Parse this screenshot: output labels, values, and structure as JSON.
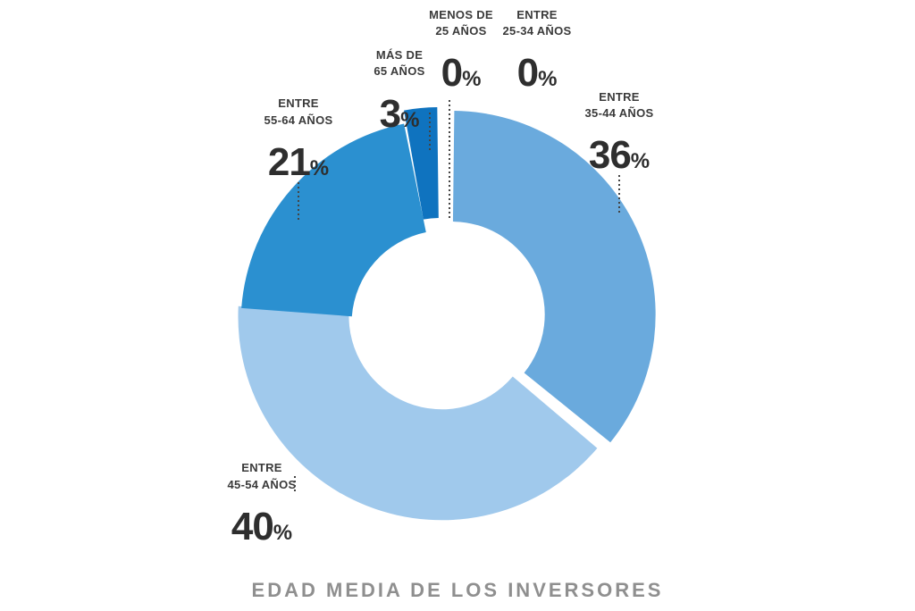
{
  "chart_data": {
    "type": "pie",
    "title": "EDAD MEDIA DE LOS INVERSORES",
    "slices": [
      {
        "label_line1": "MENOS DE",
        "label_line2": "25 AÑOS",
        "value": 0,
        "value_text": "0",
        "unit": "%",
        "color": "#1f77b4"
      },
      {
        "label_line1": "ENTRE",
        "label_line2": "25-34 AÑOS",
        "value": 0,
        "value_text": "0",
        "unit": "%",
        "color": "#1f77b4"
      },
      {
        "label_line1": "ENTRE",
        "label_line2": "35-44 AÑOS",
        "value": 36,
        "value_text": "36",
        "unit": "%",
        "color": "#6aaadd"
      },
      {
        "label_line1": "ENTRE",
        "label_line2": "45-54 AÑOS",
        "value": 40,
        "value_text": "40",
        "unit": "%",
        "color": "#a0c9ec"
      },
      {
        "label_line1": "ENTRE",
        "label_line2": "55-64 AÑOS",
        "value": 21,
        "value_text": "21",
        "unit": "%",
        "color": "#2b90d0"
      },
      {
        "label_line1": "MÁS DE",
        "label_line2": "65 AÑOS",
        "value": 3,
        "value_text": "3",
        "unit": "%",
        "color": "#0f73bf"
      }
    ]
  }
}
